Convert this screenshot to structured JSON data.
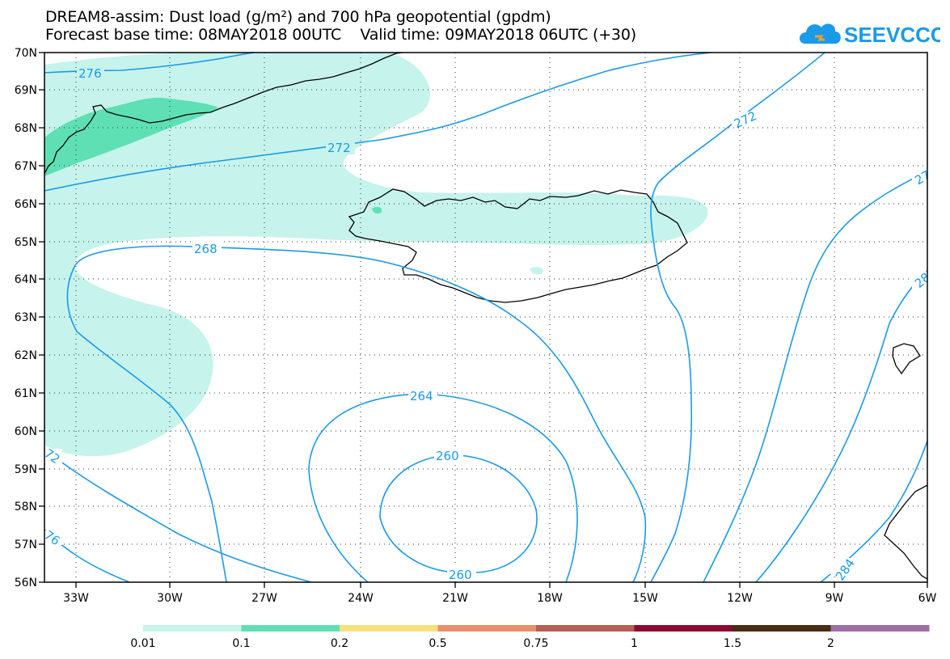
{
  "header": {
    "title_line1": "DREAM8-assim: Dust load (g/m²) and 700 hPa geopotential (gpdm)",
    "title_line2": "Forecast base time: 08MAY2018 00UTC    Valid time: 09MAY2018 06UTC (+30)"
  },
  "logo": {
    "text": "SEEVCCC",
    "icon": "cloud-icon",
    "color": "#1a9ae8"
  },
  "map": {
    "lat_labels": [
      "70N",
      "69N",
      "68N",
      "67N",
      "66N",
      "65N",
      "64N",
      "63N",
      "62N",
      "61N",
      "60N",
      "59N",
      "58N",
      "57N",
      "56N"
    ],
    "lon_labels": [
      "33W",
      "30W",
      "27W",
      "24W",
      "21W",
      "18W",
      "15W",
      "12W",
      "9W",
      "6W"
    ],
    "contour_labels": {
      "c276_top": "276",
      "c272_north": "272",
      "c272_ne": "272",
      "c268": "268",
      "c264": "264",
      "c260_top": "260",
      "c260_bottom": "260",
      "c272_sw": "72",
      "c276_sw": "76",
      "c284": "284",
      "c27_east": "27",
      "c28_east": "28"
    },
    "colors": {
      "contour": "#1a9ae8",
      "coast": "#000000",
      "dust_light": "#c6f3ec",
      "dust_mid": "#5ee0b4"
    }
  },
  "colorbar": {
    "labels": [
      "0.01",
      "0.1",
      "0.2",
      "0.5",
      "0.75",
      "1",
      "1.5",
      "2"
    ],
    "colors": [
      "#c6f3ec",
      "#5ee0b4",
      "#f7e17b",
      "#e9916d",
      "#b65e58",
      "#8a0a33",
      "#4a2c12",
      "#9e6fa4"
    ]
  }
}
